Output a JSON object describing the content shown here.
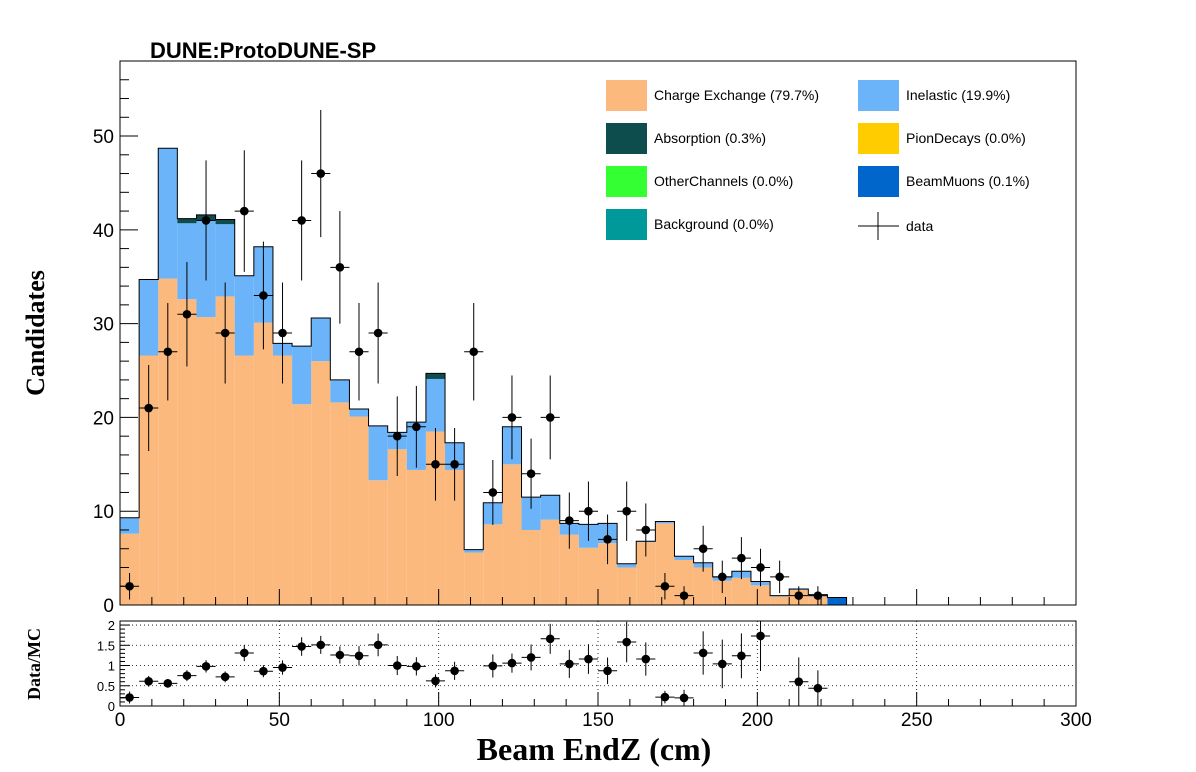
{
  "chart_data": [
    {
      "type": "bar",
      "stacked": true,
      "title": "DUNE:ProtoDUNE-SP",
      "ylabel": "Candidates",
      "xlim": [
        0,
        300
      ],
      "ylim": [
        0,
        58
      ],
      "yticks": [
        0,
        10,
        20,
        30,
        40,
        50
      ],
      "bin_width": 6,
      "bin_lo": [
        0,
        6,
        12,
        18,
        24,
        30,
        36,
        42,
        48,
        54,
        60,
        66,
        72,
        78,
        84,
        90,
        96,
        102,
        108,
        114,
        120,
        126,
        132,
        138,
        144,
        150,
        156,
        162,
        168,
        174,
        180,
        186,
        192,
        198,
        204,
        210,
        216,
        222
      ],
      "series": [
        {
          "name": "Charge Exchange (79.7%)",
          "color": "#fcb97d",
          "values": [
            7.6,
            26.6,
            34.8,
            32.6,
            30.7,
            32.9,
            26.6,
            30.1,
            26.6,
            21.4,
            26.0,
            21.6,
            20.1,
            13.3,
            16.6,
            14.4,
            18.5,
            14.4,
            5.6,
            8.6,
            15.0,
            8.0,
            9.1,
            7.5,
            6.1,
            6.6,
            4.0,
            6.7,
            8.7,
            4.8,
            4.0,
            2.6,
            2.9,
            2.1,
            0.9,
            1.6,
            0.9,
            0.0
          ]
        },
        {
          "name": "Inelastic (19.9%)",
          "color": "#6cb4fa",
          "values": [
            1.7,
            8.1,
            13.9,
            8.1,
            10.3,
            7.7,
            8.5,
            8.1,
            1.3,
            6.2,
            4.6,
            2.4,
            0.8,
            5.8,
            1.8,
            5.1,
            5.6,
            2.9,
            0.3,
            2.3,
            4.0,
            3.5,
            2.6,
            1.2,
            2.5,
            2.1,
            0.4,
            0.1,
            0.2,
            0.4,
            0.5,
            0.4,
            0.7,
            0.4,
            0.1,
            0.1,
            0.2,
            0.0
          ]
        },
        {
          "name": "Absorption (0.3%)",
          "color": "#0d4d4d",
          "values": [
            0,
            0,
            0,
            0.5,
            0.6,
            0.5,
            0,
            0,
            0,
            0,
            0,
            0,
            0,
            0,
            0,
            0,
            0.6,
            0,
            0,
            0,
            0,
            0,
            0,
            0,
            0,
            0,
            0,
            0,
            0,
            0,
            0,
            0,
            0,
            0,
            0,
            0,
            0,
            0
          ]
        },
        {
          "name": "PionDecays (0.0%)",
          "color": "#ffcc00",
          "values": [
            0,
            0,
            0,
            0,
            0,
            0,
            0,
            0,
            0,
            0,
            0,
            0,
            0,
            0,
            0,
            0,
            0,
            0,
            0,
            0,
            0,
            0,
            0,
            0,
            0,
            0,
            0,
            0,
            0,
            0,
            0,
            0,
            0,
            0,
            0,
            0,
            0,
            0
          ]
        },
        {
          "name": "OtherChannels (0.0%)",
          "color": "#33ff33",
          "values": [
            0,
            0,
            0,
            0,
            0,
            0,
            0,
            0,
            0,
            0,
            0,
            0,
            0,
            0,
            0,
            0,
            0,
            0,
            0,
            0,
            0,
            0,
            0,
            0,
            0,
            0,
            0,
            0,
            0,
            0,
            0,
            0,
            0,
            0,
            0,
            0,
            0,
            0
          ]
        },
        {
          "name": "BeamMuons (0.1%)",
          "color": "#0066cc",
          "values": [
            0,
            0,
            0,
            0,
            0,
            0,
            0,
            0,
            0,
            0,
            0,
            0,
            0,
            0,
            0,
            0,
            0,
            0,
            0,
            0,
            0,
            0,
            0,
            0,
            0,
            0,
            0,
            0,
            0,
            0,
            0,
            0,
            0,
            0,
            0,
            0,
            0,
            0.8
          ]
        },
        {
          "name": "Background (0.0%)",
          "color": "#009999",
          "values": [
            0,
            0,
            0,
            0,
            0,
            0,
            0,
            0,
            0,
            0,
            0,
            0,
            0,
            0,
            0,
            0,
            0,
            0,
            0,
            0,
            0,
            0,
            0,
            0,
            0,
            0,
            0,
            0,
            0,
            0,
            0,
            0,
            0,
            0,
            0,
            0,
            0,
            0
          ]
        }
      ],
      "data_series": {
        "name": "data",
        "x": [
          3,
          9,
          15,
          21,
          27,
          33,
          39,
          45,
          51,
          57,
          63,
          69,
          75,
          81,
          87,
          93,
          99,
          105,
          111,
          117,
          123,
          129,
          135,
          141,
          147,
          153,
          159,
          165,
          171,
          177,
          183,
          189,
          195,
          201,
          207,
          213,
          219
        ],
        "y": [
          2,
          21,
          27,
          31,
          41,
          29,
          42,
          33,
          29,
          41,
          46,
          36,
          27,
          29,
          18,
          19,
          15,
          15,
          27,
          12,
          20,
          14,
          20,
          9,
          10,
          7,
          10,
          8,
          2,
          1,
          6,
          3,
          5,
          4,
          3,
          1,
          1
        ]
      },
      "legend_position": "top-right"
    },
    {
      "type": "scatter",
      "ylabel": "Data/MC",
      "xlabel": "Beam EndZ (cm)",
      "xlim": [
        0,
        300
      ],
      "xticks": [
        0,
        50,
        100,
        150,
        200,
        250,
        300
      ],
      "ylim": [
        0,
        2.1
      ],
      "yticks": [
        0,
        0.5,
        1,
        1.5,
        2
      ],
      "grid": true,
      "x": [
        3,
        9,
        15,
        21,
        27,
        33,
        39,
        45,
        51,
        57,
        63,
        69,
        75,
        81,
        87,
        93,
        99,
        105,
        117,
        123,
        129,
        135,
        141,
        147,
        153,
        159,
        165,
        171,
        177,
        183,
        189,
        195,
        201,
        213,
        219
      ],
      "y": [
        0.21,
        0.61,
        0.56,
        0.75,
        0.98,
        0.72,
        1.31,
        0.86,
        0.95,
        1.47,
        1.51,
        1.26,
        1.24,
        1.51,
        1.0,
        0.98,
        0.62,
        0.87,
        0.99,
        1.06,
        1.2,
        1.66,
        1.04,
        1.16,
        0.87,
        1.58,
        1.16,
        0.22,
        0.2,
        1.31,
        1.04,
        1.24,
        1.73,
        0.6,
        0.44
      ]
    }
  ]
}
